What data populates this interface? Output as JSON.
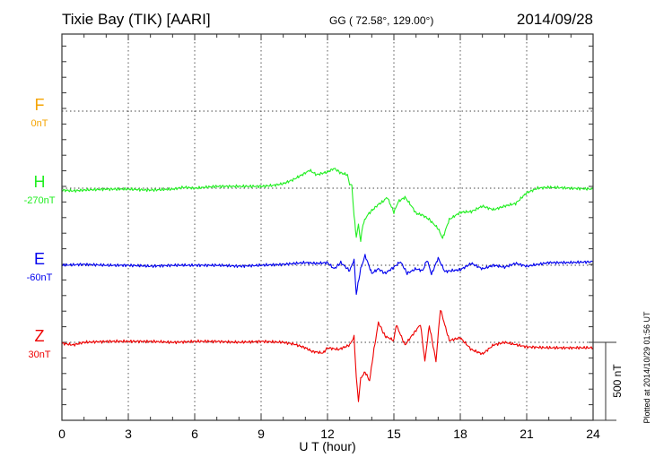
{
  "chart_data": {
    "type": "line",
    "title": "Tixie Bay (TIK)  [AARI]",
    "subtitle": "GG ( 72.58°, 129.00°)",
    "date": "2014/09/28",
    "xlabel": "U T (hour)",
    "xlim": [
      0,
      24
    ],
    "xticks": [
      "0",
      "3",
      "6",
      "9",
      "12",
      "15",
      "18",
      "21",
      "24"
    ],
    "scale_bar": "500 nT",
    "scale_bar_value": 500,
    "footer": "Plotted at 2014/10/29 01:56 UT",
    "series": [
      {
        "name": "F",
        "offset": "0nT",
        "color": "#f5a400",
        "x": [],
        "values": []
      },
      {
        "name": "H",
        "offset": "-270nT",
        "color": "#22ee22",
        "x": [
          0,
          0.5,
          1,
          2,
          3,
          4,
          5,
          5.5,
          6,
          7,
          8,
          9,
          9.5,
          10,
          10.5,
          11,
          11.2,
          11.5,
          12,
          12.3,
          12.6,
          12.9,
          13,
          13.1,
          13.2,
          13.3,
          13.4,
          13.5,
          13.6,
          13.8,
          14,
          14.3,
          14.5,
          14.7,
          15,
          15.2,
          15.5,
          15.8,
          16,
          16.3,
          16.6,
          16.8,
          17,
          17.2,
          17.5,
          17.8,
          18,
          18.5,
          19,
          19.5,
          20,
          20.5,
          21,
          21.5,
          22,
          23,
          24
        ],
        "values": [
          -12,
          -17,
          -12,
          -6,
          -6,
          -12,
          -6,
          6,
          0,
          12,
          12,
          12,
          17,
          29,
          58,
          98,
          115,
          86,
          104,
          127,
          98,
          86,
          29,
          12,
          -173,
          -316,
          -230,
          -345,
          -230,
          -173,
          -144,
          -104,
          -86,
          -58,
          -155,
          -86,
          -58,
          -115,
          -161,
          -173,
          -201,
          -230,
          -259,
          -322,
          -201,
          -173,
          -155,
          -150,
          -115,
          -138,
          -115,
          -98,
          -29,
          0,
          6,
          0,
          -6
        ]
      },
      {
        "name": "E",
        "offset": "-60nT",
        "color": "#0000ee",
        "x": [
          0,
          1,
          2,
          3,
          4,
          5,
          6,
          7,
          8,
          9,
          10,
          11,
          11.5,
          12,
          12.3,
          12.6,
          13,
          13.2,
          13.3,
          13.5,
          13.7,
          14,
          14.3,
          14.6,
          15,
          15.3,
          15.6,
          16,
          16.3,
          16.5,
          16.7,
          17,
          17.3,
          17.6,
          18,
          18.5,
          19,
          19.5,
          20,
          20.5,
          21,
          22,
          23,
          24
        ],
        "values": [
          0,
          6,
          0,
          0,
          -6,
          0,
          0,
          0,
          -6,
          0,
          6,
          17,
          12,
          17,
          -23,
          17,
          -35,
          35,
          -184,
          -23,
          63,
          -52,
          -23,
          -52,
          -12,
          23,
          -52,
          -23,
          -35,
          35,
          -58,
          46,
          -40,
          -35,
          -29,
          12,
          -23,
          0,
          -12,
          12,
          -6,
          17,
          17,
          23
        ]
      },
      {
        "name": "Z",
        "offset": "30nT",
        "color": "#ee0000",
        "x": [
          0,
          0.5,
          1,
          2,
          3,
          4,
          5,
          6,
          7,
          8,
          9,
          10,
          10.5,
          11,
          11.3,
          11.8,
          12,
          12.5,
          13,
          13.2,
          13.3,
          13.4,
          13.5,
          13.7,
          13.9,
          14.1,
          14.3,
          14.6,
          15,
          15.1,
          15.5,
          15.8,
          16.2,
          16.4,
          16.6,
          16.9,
          17.1,
          17.5,
          18,
          18.5,
          19,
          19.5,
          20,
          21,
          22,
          24
        ],
        "values": [
          -6,
          -17,
          0,
          6,
          6,
          6,
          0,
          6,
          6,
          0,
          6,
          0,
          -12,
          -35,
          -58,
          -69,
          -35,
          -46,
          -17,
          35,
          -219,
          -380,
          -230,
          -190,
          -247,
          -46,
          127,
          40,
          12,
          115,
          -17,
          40,
          115,
          -121,
          109,
          -121,
          213,
          12,
          29,
          -46,
          -75,
          -17,
          0,
          -29,
          -35,
          -35
        ]
      }
    ]
  }
}
